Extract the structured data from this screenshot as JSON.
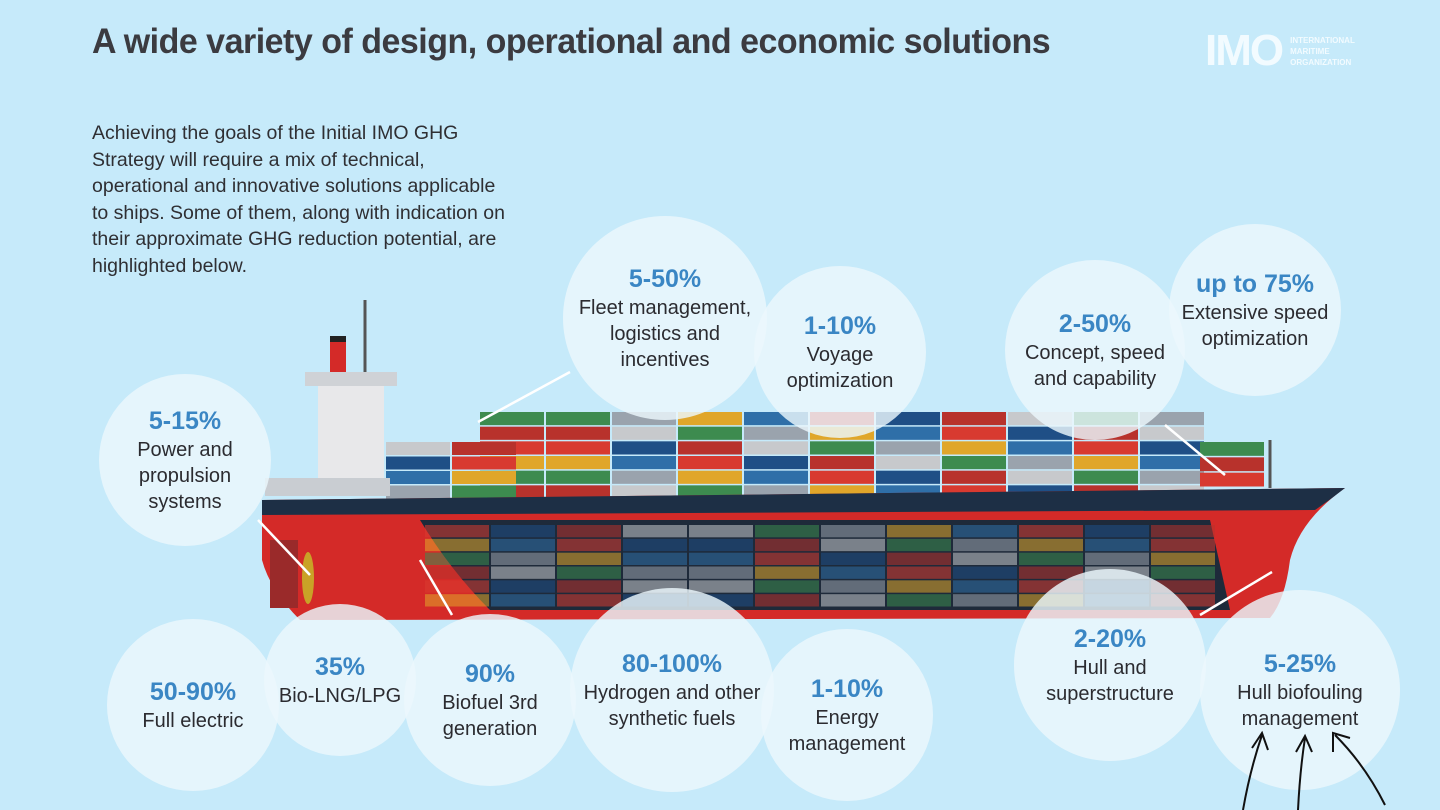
{
  "title": "A wide variety of design, operational and economic solutions",
  "intro": "Achieving the goals of the Initial IMO GHG Strategy will require a mix of technical, operational and innovative solutions applicable to ships. Some of them, along with indication on their approximate GHG reduction potential, are highlighted below.",
  "logo": {
    "mark": "IMO",
    "line1": "INTERNATIONAL",
    "line2": "MARITIME",
    "line3": "ORGANIZATION"
  },
  "colors": {
    "background": "#c6eafa",
    "percent": "#3a86c4",
    "hull_red": "#d42a28",
    "hull_dark": "#1d2f45"
  },
  "solutions": [
    {
      "percent": "5-15%",
      "label": "Power and propulsion systems"
    },
    {
      "percent": "5-50%",
      "label": "Fleet management, logistics and incentives"
    },
    {
      "percent": "1-10%",
      "label": "Voyage optimization"
    },
    {
      "percent": "2-50%",
      "label": "Concept, speed and capability"
    },
    {
      "percent": "up to 75%",
      "label": "Extensive speed optimization"
    },
    {
      "percent": "50-90%",
      "label": "Full electric"
    },
    {
      "percent": "35%",
      "label": "Bio-LNG/LPG"
    },
    {
      "percent": "90%",
      "label": "Biofuel 3rd generation"
    },
    {
      "percent": "80-100%",
      "label": "Hydrogen and other synthetic fuels"
    },
    {
      "percent": "1-10%",
      "label": "Energy management"
    },
    {
      "percent": "2-20%",
      "label": "Hull and superstructure"
    },
    {
      "percent": "5-25%",
      "label": "Hull biofouling management"
    }
  ]
}
